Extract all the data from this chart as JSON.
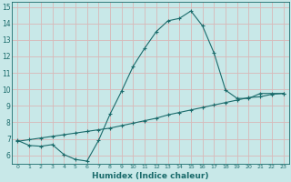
{
  "xlabel": "Humidex (Indice chaleur)",
  "xlim": [
    -0.5,
    23.5
  ],
  "ylim": [
    5.5,
    15.3
  ],
  "yticks": [
    6,
    7,
    8,
    9,
    10,
    11,
    12,
    13,
    14,
    15
  ],
  "xticks": [
    0,
    1,
    2,
    3,
    4,
    5,
    6,
    7,
    8,
    9,
    10,
    11,
    12,
    13,
    14,
    15,
    16,
    17,
    18,
    19,
    20,
    21,
    22,
    23
  ],
  "bg_color": "#c8e8e8",
  "grid_color": "#d8b8b8",
  "line_color": "#1a6b6b",
  "line1_x": [
    0,
    1,
    2,
    3,
    4,
    5,
    6,
    7,
    8,
    9,
    10,
    11,
    12,
    13,
    14,
    15,
    16,
    17,
    18,
    19,
    20,
    21,
    22,
    23
  ],
  "line1_y": [
    6.9,
    6.6,
    6.55,
    6.65,
    6.05,
    5.75,
    5.65,
    6.9,
    8.5,
    9.9,
    11.4,
    12.5,
    13.5,
    14.15,
    14.3,
    14.75,
    13.85,
    12.2,
    9.95,
    9.45,
    9.45,
    9.75,
    9.75,
    9.75
  ],
  "line2_x": [
    0,
    1,
    2,
    3,
    4,
    5,
    6,
    7,
    8,
    9,
    10,
    11,
    12,
    13,
    14,
    15,
    16,
    17,
    18,
    19,
    20,
    21,
    22,
    23
  ],
  "line2_y": [
    6.85,
    6.95,
    7.05,
    7.15,
    7.25,
    7.35,
    7.45,
    7.55,
    7.65,
    7.8,
    7.95,
    8.1,
    8.25,
    8.45,
    8.6,
    8.75,
    8.9,
    9.05,
    9.2,
    9.35,
    9.5,
    9.55,
    9.7,
    9.75
  ]
}
